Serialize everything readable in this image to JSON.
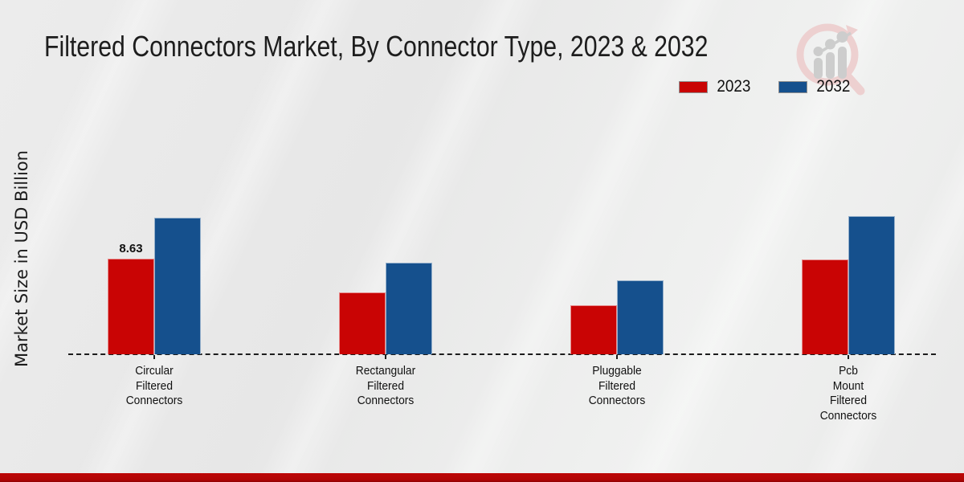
{
  "title": "Filtered Connectors Market, By Connector Type, 2023 & 2032",
  "y_axis_label": "Market Size in USD Billion",
  "colors": {
    "series_2023": "#c90404",
    "series_2032": "#15508d",
    "footer_bar": "#b30606",
    "axis_line": "#1c1c1c",
    "background": "#eaeaea",
    "text": "#1a1a1a",
    "watermark_pink": "#edcdcd",
    "watermark_gray": "#c9c9c9"
  },
  "legend": {
    "position": "top-right",
    "items": [
      "2023",
      "2032"
    ]
  },
  "watermark_icon": "magnifier-growth-chart-logo",
  "chart_data": {
    "type": "bar",
    "title": "Filtered Connectors Market, By Connector Type, 2023 & 2032",
    "xlabel": "",
    "ylabel": "Market Size in USD Billion",
    "categories": [
      "Circular Filtered Connectors",
      "Rectangular Filtered Connectors",
      "Pluggable Filtered Connectors",
      "Pcb Mount Filtered Connectors"
    ],
    "category_label_lines": [
      [
        "Circular",
        "Filtered",
        "Connectors"
      ],
      [
        "Rectangular",
        "Filtered",
        "Connectors"
      ],
      [
        "Pluggable",
        "Filtered",
        "Connectors"
      ],
      [
        "Pcb",
        "Mount",
        "Filtered",
        "Connectors"
      ]
    ],
    "series": [
      {
        "name": "2023",
        "color": "#c90404",
        "values": [
          8.63,
          5.58,
          4.42,
          8.56
        ]
      },
      {
        "name": "2032",
        "color": "#15508d",
        "values": [
          12.33,
          8.27,
          6.67,
          12.47
        ]
      }
    ],
    "data_labels": [
      {
        "series_index": 0,
        "category_index": 0,
        "text": "8.63"
      }
    ],
    "ylim": [
      0,
      14
    ],
    "grid": false,
    "y_axis_ticks_visible": false,
    "legend_position": "top-right",
    "baseline_style": "dashed"
  }
}
